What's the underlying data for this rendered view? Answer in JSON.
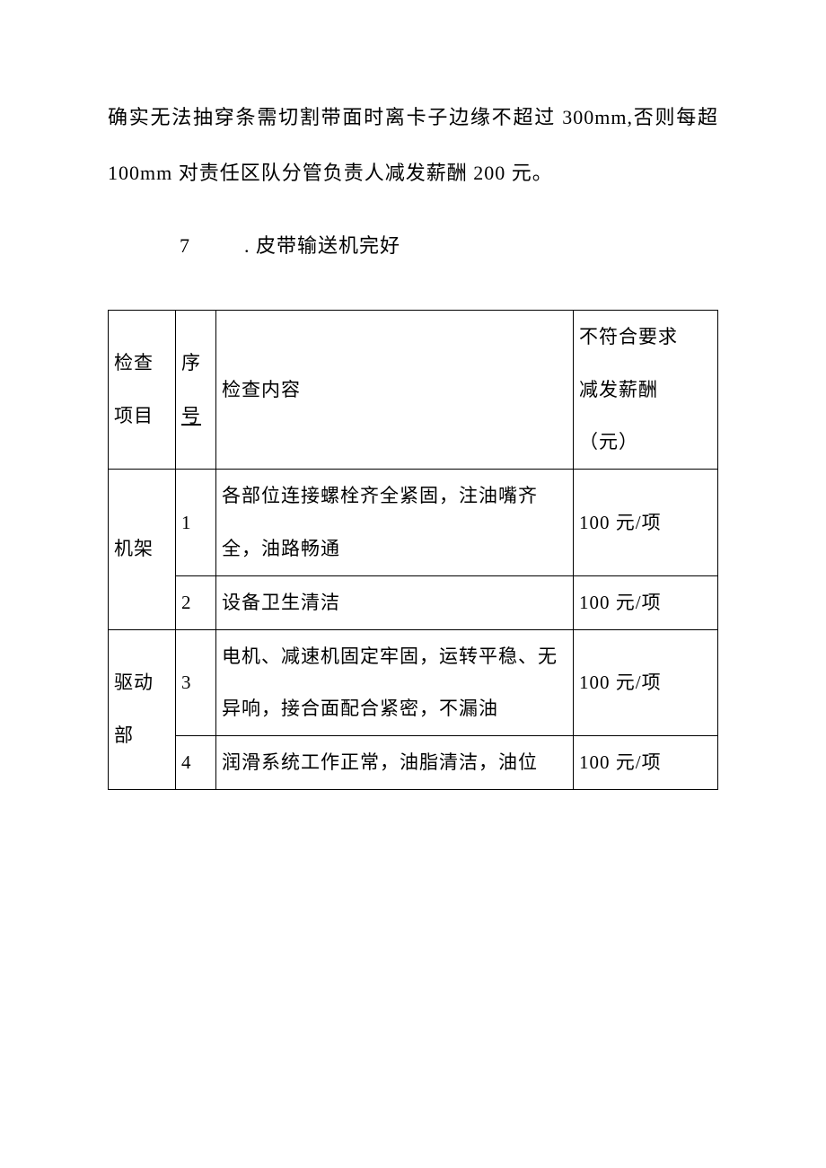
{
  "paragraph": "确实无法抽穿条需切割带面时离卡子边缘不超过 300mm,否则每超 100mm 对责任区队分管负责人减发薪酬 200 元。",
  "heading": {
    "num": "7",
    "text": ". 皮带输送机完好"
  },
  "table": {
    "columns": {
      "category": "检查项目",
      "seq_a": "序",
      "seq_b": "号",
      "content": "检查内容",
      "penalty_a": "不符合要求",
      "penalty_b": "减发薪酬",
      "penalty_c": "（元）"
    },
    "groups": [
      {
        "category": "机架",
        "rows": [
          {
            "n": "1",
            "content": "各部位连接螺栓齐全紧固，注油嘴齐全，油路畅通",
            "penalty": "100 元/项"
          },
          {
            "n": "2",
            "content": "设备卫生清洁",
            "penalty": "100 元/项"
          }
        ]
      },
      {
        "category": "驱动部",
        "rows": [
          {
            "n": "3",
            "content": "电机、减速机固定牢固，运转平稳、无异响，接合面配合紧密，不漏油",
            "penalty": "100 元/项"
          },
          {
            "n": "4",
            "content": "润滑系统工作正常，油脂清洁，油位",
            "penalty": "100 元/项"
          }
        ]
      }
    ]
  }
}
